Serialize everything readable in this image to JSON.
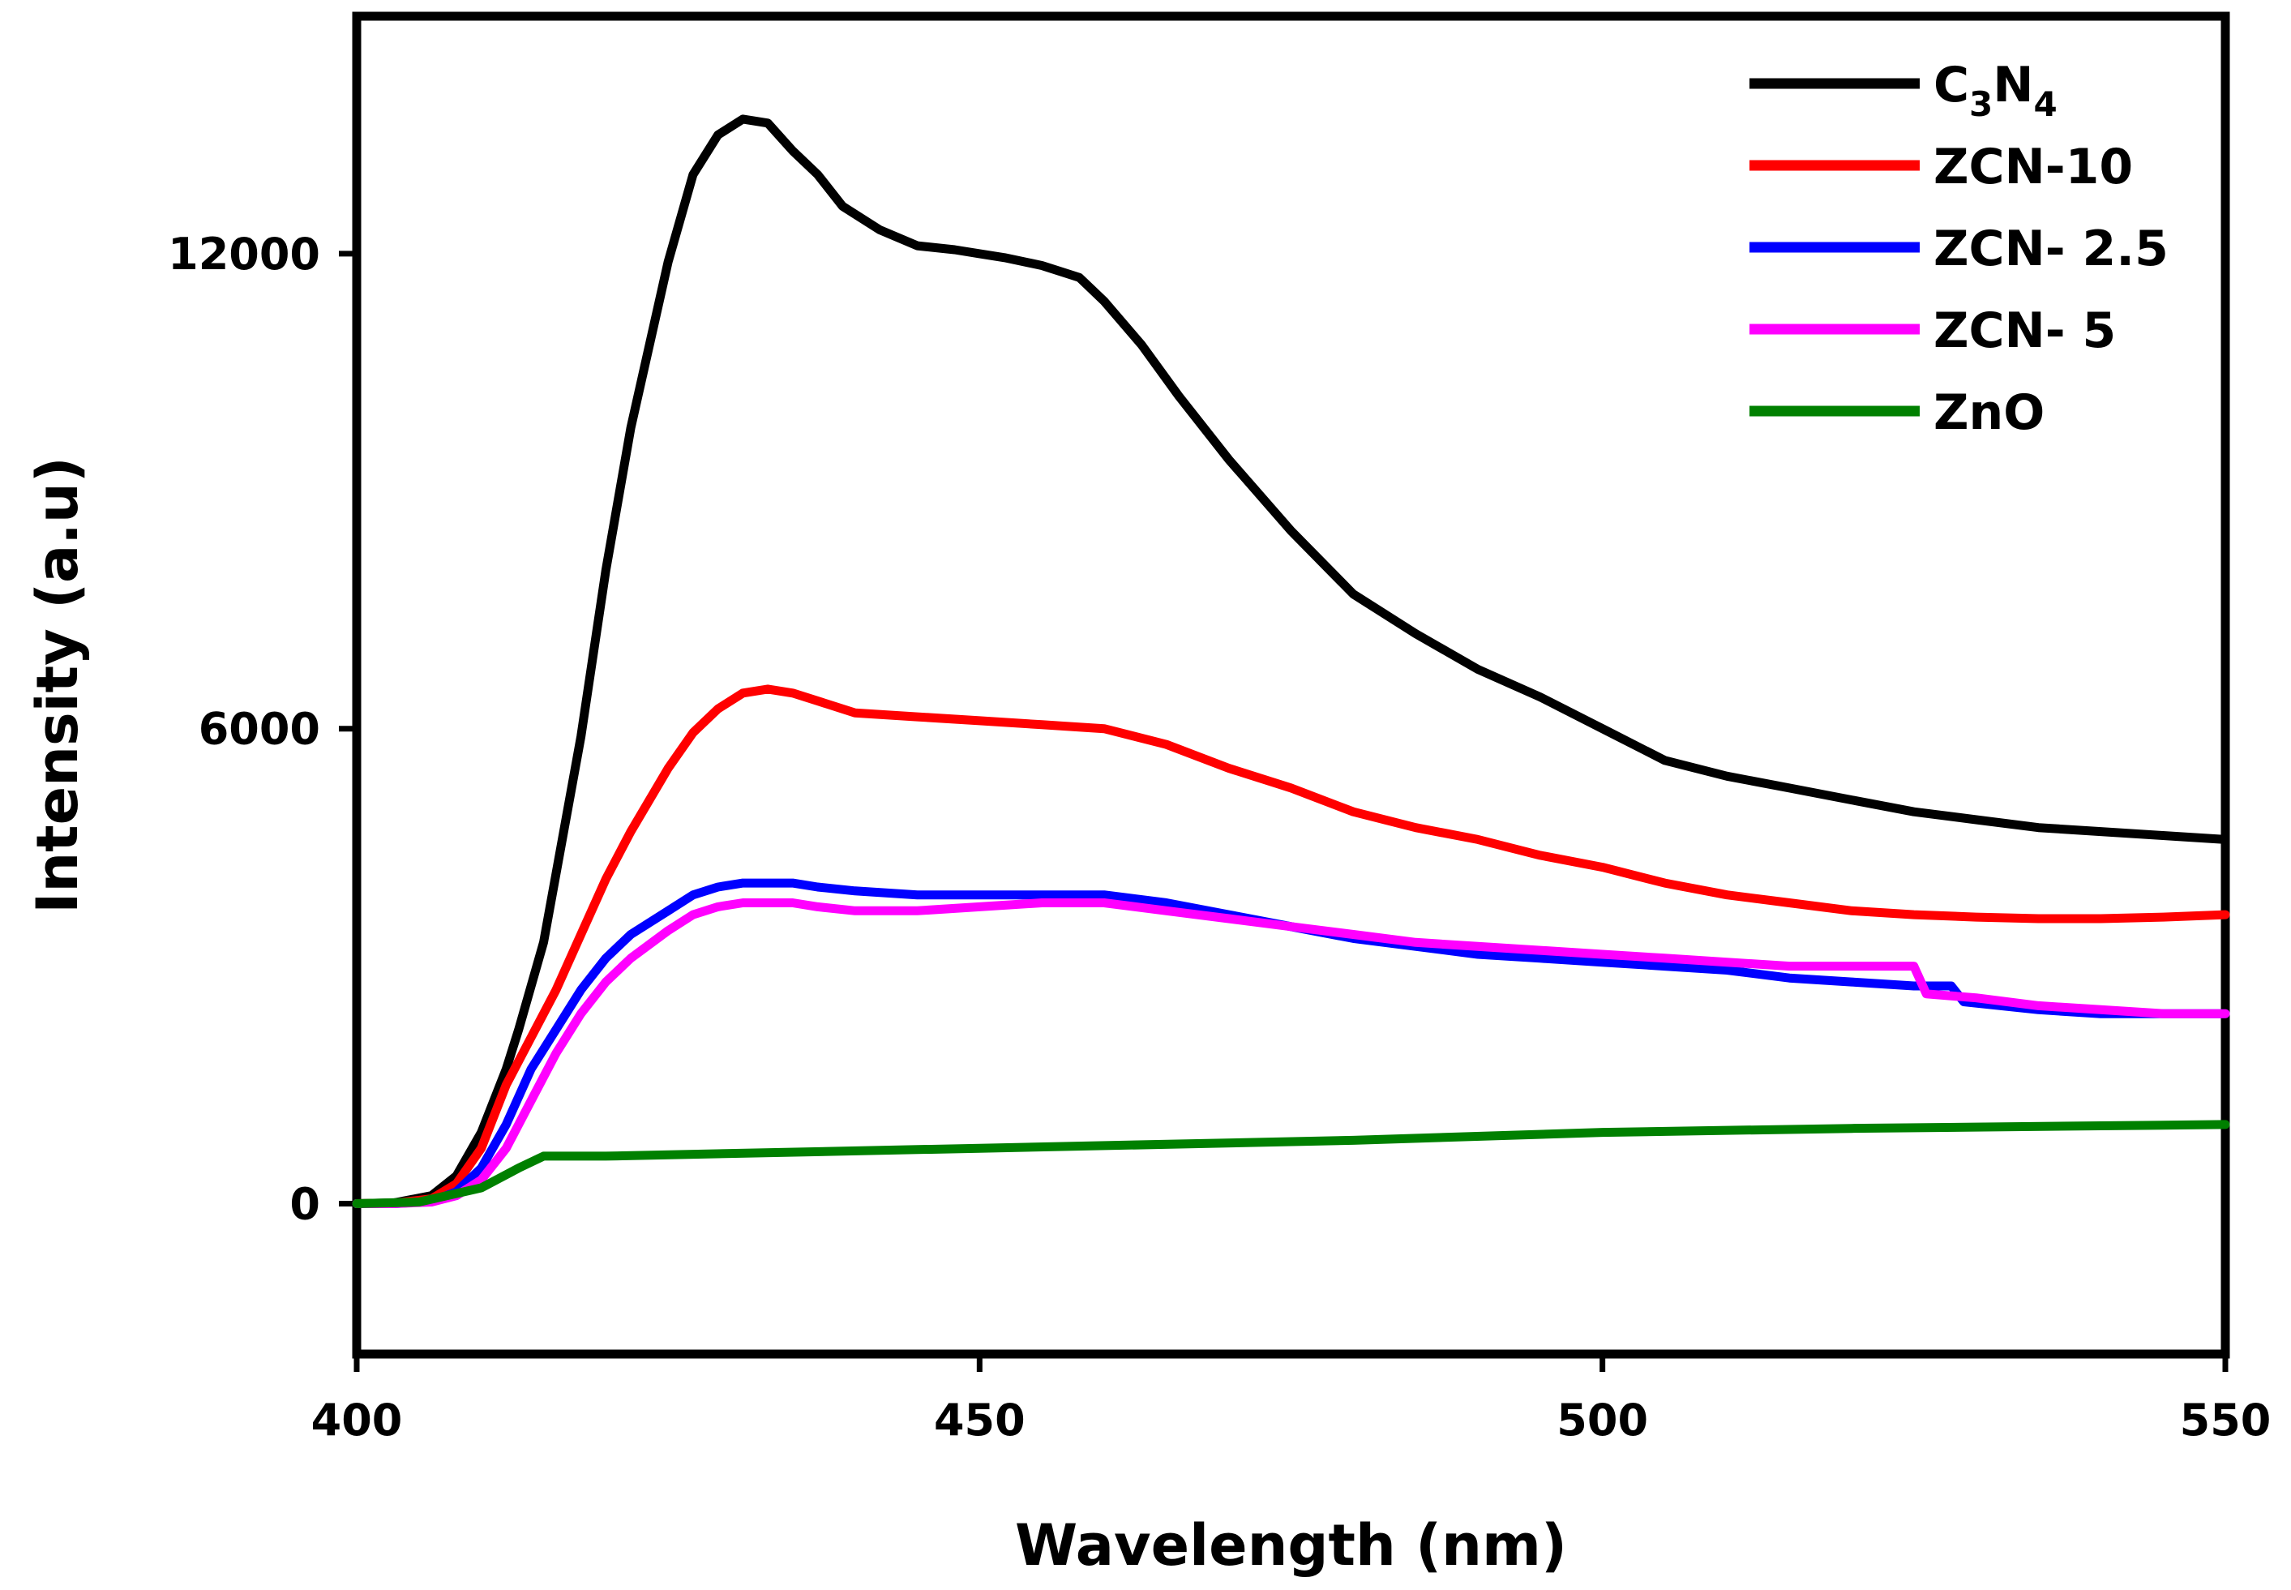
{
  "chart_data": {
    "type": "line",
    "title": "",
    "xlabel": "Wavelength (nm)",
    "ylabel": "Intensity (a.u)",
    "xlim": [
      400,
      550
    ],
    "ylim": [
      -1900,
      15000
    ],
    "x_ticks": [
      400,
      450,
      500,
      550
    ],
    "x_tick_labels": [
      "400",
      "450",
      "500",
      "550"
    ],
    "y_ticks": [
      0,
      6000,
      12000
    ],
    "y_tick_labels": [
      "0",
      "6000",
      "12000"
    ],
    "grid": false,
    "legend_position": "top-right",
    "series": [
      {
        "name": "C3N4",
        "name_parts": {
          "a": "C",
          "sub_a": "3",
          "b": "N",
          "sub_b": "4"
        },
        "color": "#000000",
        "x": [
          400,
          403,
          406,
          408,
          410,
          412,
          413,
          415,
          418,
          420,
          422,
          425,
          427,
          429,
          431,
          433,
          435,
          437,
          439,
          442,
          445,
          448,
          450,
          452,
          455,
          458,
          460,
          463,
          466,
          470,
          475,
          480,
          485,
          490,
          495,
          500,
          505,
          510,
          515,
          520,
          525,
          530,
          535,
          540,
          545,
          550
        ],
        "y": [
          0,
          10,
          100,
          350,
          900,
          1700,
          2200,
          3300,
          5900,
          8000,
          9800,
          11900,
          13000,
          13500,
          13700,
          13650,
          13300,
          13000,
          12600,
          12300,
          12100,
          12050,
          12000,
          11950,
          11850,
          11700,
          11400,
          10850,
          10200,
          9400,
          8500,
          7700,
          7200,
          6750,
          6400,
          6000,
          5600,
          5400,
          5250,
          5100,
          4950,
          4850,
          4750,
          4700,
          4650,
          4600
        ]
      },
      {
        "name": "ZCN-10",
        "color": "#ff0000",
        "x": [
          400,
          403,
          406,
          408,
          410,
          412,
          414,
          416,
          418,
          420,
          422,
          425,
          427,
          429,
          431,
          433,
          435,
          437,
          440,
          445,
          450,
          455,
          460,
          465,
          470,
          475,
          480,
          485,
          490,
          495,
          500,
          505,
          510,
          515,
          520,
          525,
          530,
          535,
          540,
          545,
          550
        ],
        "y": [
          0,
          5,
          60,
          250,
          700,
          1500,
          2100,
          2700,
          3400,
          4100,
          4700,
          5500,
          5950,
          6250,
          6450,
          6500,
          6450,
          6350,
          6200,
          6150,
          6100,
          6050,
          6000,
          5800,
          5500,
          5250,
          4950,
          4750,
          4600,
          4400,
          4250,
          4050,
          3900,
          3800,
          3700,
          3650,
          3620,
          3600,
          3600,
          3620,
          3650
        ]
      },
      {
        "name": "ZCN- 2.5",
        "color": "#0000ff",
        "x": [
          400,
          403,
          406,
          408,
          410,
          412,
          414,
          416,
          418,
          420,
          422,
          425,
          427,
          429,
          431,
          433,
          435,
          437,
          440,
          445,
          450,
          455,
          460,
          465,
          470,
          475,
          480,
          485,
          490,
          495,
          500,
          505,
          510,
          515,
          520,
          525,
          528,
          529,
          535,
          540,
          545,
          550
        ],
        "y": [
          0,
          0,
          30,
          150,
          450,
          1000,
          1700,
          2200,
          2700,
          3100,
          3400,
          3700,
          3900,
          4000,
          4050,
          4050,
          4050,
          4000,
          3950,
          3900,
          3900,
          3900,
          3900,
          3800,
          3650,
          3500,
          3350,
          3250,
          3150,
          3100,
          3050,
          3000,
          2950,
          2850,
          2800,
          2750,
          2750,
          2550,
          2450,
          2400,
          2400,
          2400
        ]
      },
      {
        "name": "ZCN- 5",
        "color": "#ff00ff",
        "x": [
          400,
          403,
          406,
          408,
          410,
          412,
          414,
          416,
          418,
          420,
          422,
          425,
          427,
          429,
          431,
          433,
          435,
          437,
          440,
          445,
          450,
          455,
          460,
          465,
          470,
          475,
          480,
          485,
          490,
          495,
          500,
          505,
          510,
          515,
          520,
          525,
          526,
          530,
          535,
          540,
          545,
          550
        ],
        "y": [
          0,
          0,
          20,
          100,
          300,
          700,
          1300,
          1900,
          2400,
          2800,
          3100,
          3450,
          3650,
          3750,
          3800,
          3800,
          3800,
          3750,
          3700,
          3700,
          3750,
          3800,
          3800,
          3700,
          3600,
          3500,
          3400,
          3300,
          3250,
          3200,
          3150,
          3100,
          3050,
          3000,
          3000,
          3000,
          2650,
          2600,
          2500,
          2450,
          2400,
          2400
        ]
      },
      {
        "name": "ZnO",
        "color": "#008000",
        "x": [
          400,
          405,
          410,
          413,
          415,
          417,
          420,
          450,
          480,
          500,
          520,
          550
        ],
        "y": [
          0,
          20,
          200,
          450,
          600,
          600,
          600,
          700,
          800,
          900,
          950,
          1000
        ]
      }
    ]
  }
}
